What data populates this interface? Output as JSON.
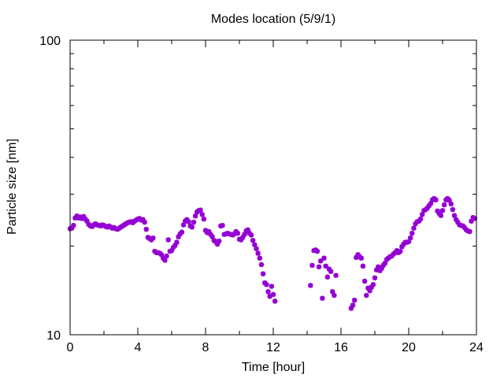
{
  "chart_data": {
    "type": "scatter",
    "title": "Modes location (5/9/1)",
    "xlabel": "Time [hour]",
    "ylabel": "Particle size [nm]",
    "xlim": [
      0,
      24
    ],
    "ylim": [
      10,
      100
    ],
    "yscale": "log",
    "xticks": [
      0,
      4,
      8,
      12,
      16,
      20,
      24
    ],
    "yticks": [
      10,
      100
    ],
    "marker_color": "#9400d3",
    "marker": "asterisk",
    "grid": false,
    "legend": "none",
    "series": [
      {
        "points": [
          [
            0.0,
            22.9
          ],
          [
            0.1,
            23.0
          ],
          [
            0.2,
            23.5
          ],
          [
            0.3,
            24.9
          ],
          [
            0.4,
            25.3
          ],
          [
            0.5,
            24.9
          ],
          [
            0.6,
            25.1
          ],
          [
            0.7,
            24.8
          ],
          [
            0.8,
            25.2
          ],
          [
            0.9,
            24.7
          ],
          [
            1.0,
            24.3
          ],
          [
            1.1,
            23.7
          ],
          [
            1.2,
            23.4
          ],
          [
            1.3,
            23.3
          ],
          [
            1.4,
            23.6
          ],
          [
            1.5,
            23.8
          ],
          [
            1.6,
            23.6
          ],
          [
            1.7,
            23.5
          ],
          [
            1.8,
            23.4
          ],
          [
            1.9,
            23.6
          ],
          [
            2.0,
            23.5
          ],
          [
            2.1,
            23.3
          ],
          [
            2.2,
            23.2
          ],
          [
            2.3,
            23.4
          ],
          [
            2.4,
            23.2
          ],
          [
            2.5,
            23.0
          ],
          [
            2.6,
            23.1
          ],
          [
            2.7,
            22.9
          ],
          [
            2.8,
            22.8
          ],
          [
            2.9,
            23.0
          ],
          [
            3.0,
            23.2
          ],
          [
            3.1,
            23.4
          ],
          [
            3.2,
            23.6
          ],
          [
            3.3,
            23.8
          ],
          [
            3.4,
            24.0
          ],
          [
            3.5,
            24.1
          ],
          [
            3.6,
            24.2
          ],
          [
            3.7,
            24.0
          ],
          [
            3.8,
            24.3
          ],
          [
            3.9,
            24.5
          ],
          [
            4.0,
            24.7
          ],
          [
            4.1,
            24.8
          ],
          [
            4.2,
            24.5
          ],
          [
            4.3,
            24.6
          ],
          [
            4.4,
            24.1
          ],
          [
            4.5,
            22.8
          ],
          [
            4.6,
            21.4
          ],
          [
            4.7,
            21.2
          ],
          [
            4.8,
            21.0
          ],
          [
            4.9,
            21.3
          ],
          [
            5.0,
            19.2
          ],
          [
            5.1,
            19.0
          ],
          [
            5.2,
            19.0
          ],
          [
            5.3,
            18.9
          ],
          [
            5.4,
            18.7
          ],
          [
            5.5,
            18.2
          ],
          [
            5.6,
            17.9
          ],
          [
            5.7,
            18.5
          ],
          [
            5.8,
            21.0
          ],
          [
            5.9,
            19.2
          ],
          [
            6.0,
            19.3
          ],
          [
            6.1,
            19.8
          ],
          [
            6.2,
            20.1
          ],
          [
            6.3,
            20.6
          ],
          [
            6.4,
            21.5
          ],
          [
            6.5,
            22.0
          ],
          [
            6.6,
            22.3
          ],
          [
            6.7,
            23.6
          ],
          [
            6.8,
            24.3
          ],
          [
            6.9,
            24.6
          ],
          [
            7.0,
            24.2
          ],
          [
            7.1,
            23.4
          ],
          [
            7.2,
            23.2
          ],
          [
            7.3,
            24.1
          ],
          [
            7.4,
            25.3
          ],
          [
            7.5,
            26.1
          ],
          [
            7.6,
            26.4
          ],
          [
            7.7,
            26.5
          ],
          [
            7.8,
            25.6
          ],
          [
            7.9,
            24.7
          ],
          [
            8.0,
            22.6
          ],
          [
            8.1,
            22.2
          ],
          [
            8.2,
            22.4
          ],
          [
            8.3,
            21.9
          ],
          [
            8.4,
            21.5
          ],
          [
            8.5,
            20.9
          ],
          [
            8.6,
            20.7
          ],
          [
            8.7,
            20.3
          ],
          [
            8.8,
            20.8
          ],
          [
            8.9,
            23.4
          ],
          [
            9.0,
            23.5
          ],
          [
            9.1,
            21.9
          ],
          [
            9.2,
            22.0
          ],
          [
            9.3,
            22.1
          ],
          [
            9.4,
            22.0
          ],
          [
            9.5,
            21.9
          ],
          [
            9.6,
            21.8
          ],
          [
            9.7,
            22.0
          ],
          [
            9.8,
            22.4
          ],
          [
            9.9,
            22.1
          ],
          [
            10.0,
            21.1
          ],
          [
            10.1,
            21.0
          ],
          [
            10.2,
            21.4
          ],
          [
            10.3,
            21.9
          ],
          [
            10.4,
            22.5
          ],
          [
            10.5,
            22.7
          ],
          [
            10.6,
            22.1
          ],
          [
            10.7,
            21.8
          ],
          [
            10.8,
            20.9
          ],
          [
            10.9,
            20.2
          ],
          [
            11.0,
            19.6
          ],
          [
            11.1,
            18.9
          ],
          [
            11.2,
            18.2
          ],
          [
            11.3,
            17.3
          ],
          [
            11.4,
            16.1
          ],
          [
            11.5,
            15.0
          ],
          [
            11.6,
            14.8
          ],
          [
            11.7,
            14.0
          ],
          [
            11.8,
            13.5
          ],
          [
            11.9,
            14.6
          ],
          [
            12.0,
            13.7
          ],
          [
            12.1,
            13.0
          ],
          [
            14.2,
            14.7
          ],
          [
            14.3,
            17.2
          ],
          [
            14.4,
            19.3
          ],
          [
            14.5,
            19.4
          ],
          [
            14.6,
            19.2
          ],
          [
            14.7,
            17.0
          ],
          [
            14.8,
            17.8
          ],
          [
            14.9,
            13.3
          ],
          [
            15.0,
            18.2
          ],
          [
            15.1,
            17.1
          ],
          [
            15.2,
            15.7
          ],
          [
            15.3,
            16.7
          ],
          [
            15.4,
            16.4
          ],
          [
            15.5,
            14.0
          ],
          [
            15.6,
            13.6
          ],
          [
            15.7,
            15.9
          ],
          [
            16.6,
            12.3
          ],
          [
            16.7,
            12.6
          ],
          [
            16.8,
            13.1
          ],
          [
            16.9,
            18.3
          ],
          [
            17.0,
            18.7
          ],
          [
            17.1,
            18.4
          ],
          [
            17.2,
            18.2
          ],
          [
            17.3,
            17.1
          ],
          [
            17.4,
            15.2
          ],
          [
            17.5,
            13.6
          ],
          [
            17.6,
            14.4
          ],
          [
            17.7,
            14.1
          ],
          [
            17.8,
            14.5
          ],
          [
            17.9,
            14.8
          ],
          [
            18.0,
            15.6
          ],
          [
            18.1,
            16.6
          ],
          [
            18.2,
            17.0
          ],
          [
            18.3,
            16.5
          ],
          [
            18.4,
            16.8
          ],
          [
            18.5,
            17.2
          ],
          [
            18.6,
            17.5
          ],
          [
            18.7,
            18.0
          ],
          [
            18.8,
            18.2
          ],
          [
            18.9,
            18.4
          ],
          [
            19.0,
            18.5
          ],
          [
            19.1,
            18.8
          ],
          [
            19.2,
            19.0
          ],
          [
            19.3,
            19.3
          ],
          [
            19.4,
            19.0
          ],
          [
            19.5,
            19.2
          ],
          [
            19.6,
            19.9
          ],
          [
            19.7,
            20.3
          ],
          [
            19.8,
            20.6
          ],
          [
            19.9,
            20.6
          ],
          [
            20.0,
            20.7
          ],
          [
            20.1,
            21.3
          ],
          [
            20.2,
            22.1
          ],
          [
            20.3,
            23.0
          ],
          [
            20.4,
            23.8
          ],
          [
            20.5,
            24.2
          ],
          [
            20.6,
            24.3
          ],
          [
            20.7,
            24.7
          ],
          [
            20.8,
            25.6
          ],
          [
            20.9,
            26.4
          ],
          [
            21.0,
            26.6
          ],
          [
            21.1,
            26.9
          ],
          [
            21.2,
            27.4
          ],
          [
            21.3,
            27.9
          ],
          [
            21.4,
            28.7
          ],
          [
            21.5,
            29.0
          ],
          [
            21.6,
            28.7
          ],
          [
            21.7,
            26.3
          ],
          [
            21.8,
            25.8
          ],
          [
            21.9,
            25.4
          ],
          [
            22.0,
            26.4
          ],
          [
            22.1,
            27.6
          ],
          [
            22.2,
            28.7
          ],
          [
            22.3,
            29.0
          ],
          [
            22.4,
            28.6
          ],
          [
            22.5,
            27.8
          ],
          [
            22.6,
            26.6
          ],
          [
            22.7,
            25.4
          ],
          [
            22.8,
            24.6
          ],
          [
            22.9,
            24.1
          ],
          [
            23.0,
            23.6
          ],
          [
            23.1,
            23.5
          ],
          [
            23.2,
            23.4
          ],
          [
            23.3,
            23.1
          ],
          [
            23.4,
            22.7
          ],
          [
            23.5,
            22.5
          ],
          [
            23.6,
            22.4
          ],
          [
            23.7,
            24.3
          ],
          [
            23.8,
            25.0
          ],
          [
            23.9,
            24.8
          ]
        ]
      }
    ]
  }
}
